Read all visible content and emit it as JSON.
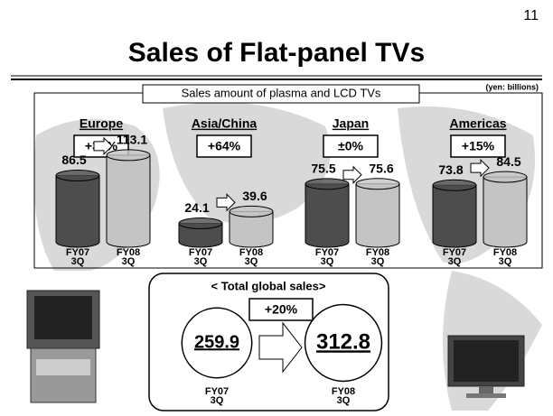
{
  "page_number": "11",
  "title": "Sales of Flat-panel TVs",
  "subtitle": "Sales amount of plasma and LCD TVs",
  "unit": "(yen: billions)",
  "chart_data": [
    {
      "type": "cylinder",
      "title": "Europe",
      "annotation": "+31%",
      "categories": [
        [
          "FY07",
          "3Q"
        ],
        [
          "FY08",
          "3Q"
        ]
      ],
      "values": [
        86.5,
        113.1
      ],
      "colors": [
        "#4d4d4d",
        "#c4c4c4"
      ]
    },
    {
      "type": "cylinder",
      "title": "Asia/China",
      "annotation": "+64%",
      "categories": [
        [
          "FY07",
          "3Q"
        ],
        [
          "FY08",
          "3Q"
        ]
      ],
      "values": [
        24.1,
        39.6
      ],
      "colors": [
        "#4d4d4d",
        "#c4c4c4"
      ]
    },
    {
      "type": "cylinder",
      "title": "Japan",
      "annotation": "±0%",
      "categories": [
        [
          "FY07",
          "3Q"
        ],
        [
          "FY08",
          "3Q"
        ]
      ],
      "values": [
        75.5,
        75.6
      ],
      "colors": [
        "#4d4d4d",
        "#c4c4c4"
      ]
    },
    {
      "type": "cylinder",
      "title": "Americas",
      "annotation": "+15%",
      "categories": [
        [
          "FY07",
          "3Q"
        ],
        [
          "FY08",
          "3Q"
        ]
      ],
      "values": [
        73.8,
        84.5
      ],
      "colors": [
        "#4d4d4d",
        "#c4c4c4"
      ]
    },
    {
      "type": "circle",
      "title": "< Total global sales>",
      "annotation": "+20%",
      "categories": [
        [
          "FY07",
          "3Q"
        ],
        [
          "FY08",
          "3Q"
        ]
      ],
      "values": [
        259.9,
        312.8
      ],
      "colors": [
        "#ffffff",
        "#ffffff"
      ]
    }
  ]
}
